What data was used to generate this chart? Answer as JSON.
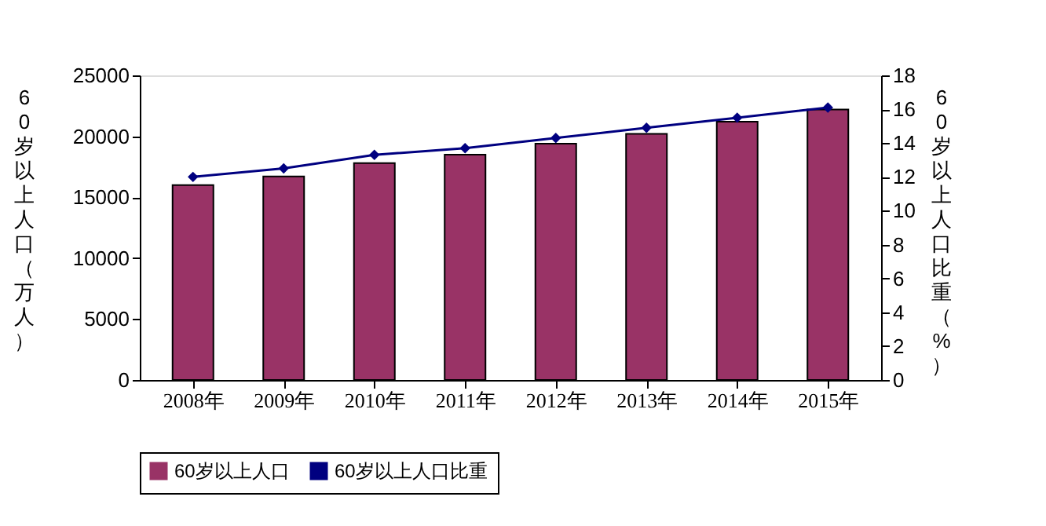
{
  "chart_data": {
    "type": "bar",
    "categories": [
      "2008年",
      "2009年",
      "2010年",
      "2011年",
      "2012年",
      "2013年",
      "2014年",
      "2015年"
    ],
    "ylabel": "60岁以上人口（万人）",
    "y2label": "60岁以上人口比重（%）",
    "series": [
      {
        "name": "60岁以上人口",
        "color": "#993366",
        "values": [
          16000,
          16700,
          17800,
          18500,
          19400,
          20200,
          21200,
          22200
        ]
      },
      {
        "name": "60岁以上人口比重",
        "type": "line",
        "axis": "y2",
        "color": "#000080",
        "marker": "diamond",
        "values": [
          12.0,
          12.5,
          13.3,
          13.7,
          14.3,
          14.9,
          15.5,
          16.1
        ]
      }
    ],
    "ylim": [
      0,
      25000
    ],
    "yticks": [
      0,
      5000,
      10000,
      15000,
      20000,
      25000
    ],
    "y2lim": [
      0,
      18
    ],
    "y2ticks": [
      0,
      2,
      4,
      6,
      8,
      10,
      12,
      14,
      16,
      18
    ],
    "grid": false,
    "legend": "bottom"
  }
}
